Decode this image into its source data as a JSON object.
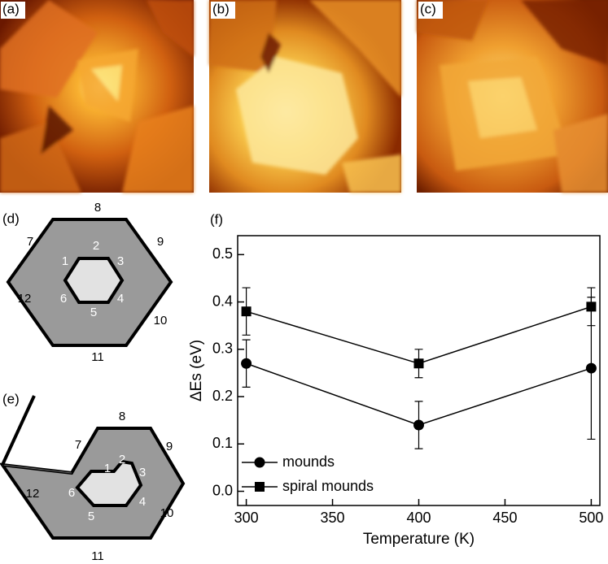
{
  "panel_labels": [
    "(a)",
    "(b)",
    "(c)",
    "(d)",
    "(e)",
    "(f)"
  ],
  "diagram_d": {
    "outer_labels": [
      "7",
      "8",
      "9",
      "10",
      "11",
      "12"
    ],
    "inner_labels": [
      "1",
      "2",
      "3",
      "4",
      "5",
      "6"
    ]
  },
  "diagram_e": {
    "outer_labels": [
      "7",
      "8",
      "9",
      "10",
      "11",
      "12"
    ],
    "inner_labels": [
      "1",
      "2",
      "3",
      "4",
      "5",
      "6"
    ]
  },
  "chart_data": {
    "type": "line",
    "xlabel": "Temperature (K)",
    "ylabel": "ΔEs (eV)",
    "x": [
      300,
      400,
      500
    ],
    "series": [
      {
        "name": "mounds",
        "marker": "circle",
        "color": "#000000",
        "values": [
          0.27,
          0.14,
          0.26
        ],
        "errors": [
          0.05,
          0.05,
          0.15
        ]
      },
      {
        "name": "spiral mounds",
        "marker": "square",
        "color": "#000000",
        "values": [
          0.38,
          0.27,
          0.39
        ],
        "errors": [
          0.05,
          0.03,
          0.04
        ]
      }
    ],
    "xlim": [
      295,
      505
    ],
    "ylim": [
      -0.03,
      0.54
    ],
    "xticks": [
      300,
      350,
      400,
      450,
      500
    ],
    "yticks": [
      {
        "value": 0,
        "label": "0.0"
      },
      0.1,
      0.2,
      0.3,
      0.4,
      0.5
    ],
    "legend": "lower left",
    "grid": false
  }
}
